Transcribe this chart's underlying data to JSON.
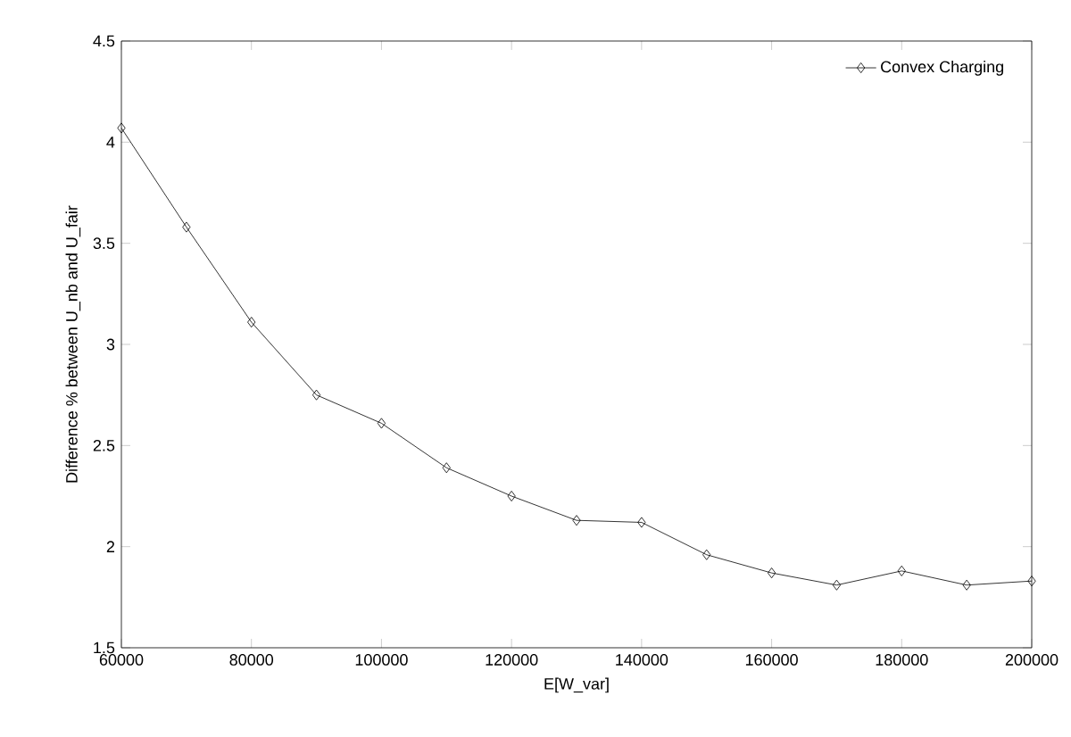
{
  "chart_data": {
    "type": "line",
    "xlabel": "E[W_var]",
    "ylabel": "Difference % between U_nb and U_fair",
    "x": [
      60000,
      70000,
      80000,
      90000,
      100000,
      110000,
      120000,
      130000,
      140000,
      150000,
      160000,
      170000,
      180000,
      190000,
      200000
    ],
    "series": [
      {
        "name": "Convex Charging",
        "color": "#000000",
        "values": [
          4.07,
          3.58,
          3.11,
          2.75,
          2.61,
          2.39,
          2.25,
          2.13,
          2.12,
          1.96,
          1.87,
          1.81,
          1.88,
          1.81,
          1.83
        ]
      }
    ],
    "xlim": [
      60000,
      200000
    ],
    "ylim": [
      1.5,
      4.5
    ],
    "xticks": [
      60000,
      80000,
      100000,
      120000,
      140000,
      160000,
      180000,
      200000
    ],
    "yticks": [
      1.5,
      2,
      2.5,
      3,
      3.5,
      4,
      4.5
    ],
    "marker": "diamond",
    "line_style": "solid",
    "legend": "top right",
    "grid": false
  }
}
